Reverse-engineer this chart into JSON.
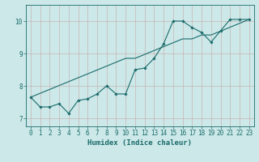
{
  "x": [
    0,
    1,
    2,
    3,
    4,
    5,
    6,
    7,
    8,
    9,
    10,
    11,
    12,
    13,
    14,
    15,
    16,
    17,
    18,
    19,
    20,
    21,
    22,
    23
  ],
  "y_zigzag": [
    7.65,
    7.35,
    7.35,
    7.45,
    7.15,
    7.55,
    7.6,
    7.75,
    8.0,
    7.75,
    7.75,
    8.5,
    8.55,
    8.85,
    9.3,
    10.0,
    10.0,
    9.8,
    9.65,
    9.35,
    9.7,
    10.05,
    10.05,
    10.05
  ],
  "y_trend": [
    7.65,
    7.77,
    7.89,
    8.01,
    8.13,
    8.25,
    8.37,
    8.49,
    8.61,
    8.73,
    8.85,
    8.85,
    8.97,
    9.09,
    9.21,
    9.33,
    9.45,
    9.45,
    9.57,
    9.57,
    9.69,
    9.81,
    9.93,
    10.05
  ],
  "line_color": "#1a6b6b",
  "bg_color": "#cce8e8",
  "grid_color": "#aacfcf",
  "axis_label": "Humidex (Indice chaleur)",
  "yticks": [
    7,
    8,
    9,
    10
  ],
  "xticks": [
    0,
    1,
    2,
    3,
    4,
    5,
    6,
    7,
    8,
    9,
    10,
    11,
    12,
    13,
    14,
    15,
    16,
    17,
    18,
    19,
    20,
    21,
    22,
    23
  ],
  "xlim": [
    -0.5,
    23.5
  ],
  "ylim": [
    6.75,
    10.5
  ],
  "xlabel_fontsize": 6.5,
  "tick_fontsize": 5.5
}
